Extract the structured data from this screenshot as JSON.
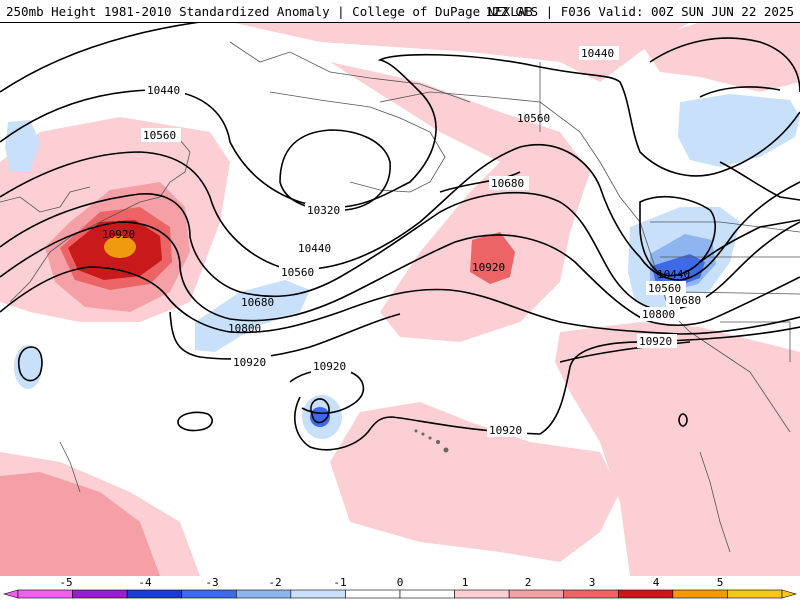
{
  "header": {
    "title_left": "250mb Height 1981-2010 Standardized Anomaly | College of DuPage NEXLAB",
    "title_right": "12Z GFS | F036 Valid: 00Z SUN JUN 22 2025"
  },
  "contours": {
    "labels": [
      {
        "id": "c1",
        "text": "10440"
      },
      {
        "id": "c2",
        "text": "10560"
      },
      {
        "id": "c3",
        "text": "10920"
      },
      {
        "id": "c4",
        "text": "10320"
      },
      {
        "id": "c5",
        "text": "10440"
      },
      {
        "id": "c6",
        "text": "10560"
      },
      {
        "id": "c7",
        "text": "10680"
      },
      {
        "id": "c8",
        "text": "10800"
      },
      {
        "id": "c9",
        "text": "10920"
      },
      {
        "id": "c10",
        "text": "10920"
      },
      {
        "id": "c11",
        "text": "10920"
      },
      {
        "id": "c12",
        "text": "10560"
      },
      {
        "id": "c13",
        "text": "10680"
      },
      {
        "id": "c14",
        "text": "10440"
      },
      {
        "id": "c15",
        "text": "10440"
      },
      {
        "id": "c16",
        "text": "10560"
      },
      {
        "id": "c17",
        "text": "10680"
      },
      {
        "id": "c18",
        "text": "10800"
      },
      {
        "id": "c19",
        "text": "10920"
      },
      {
        "id": "c20",
        "text": "10920"
      }
    ]
  },
  "colorbar": {
    "ticks": [
      "-5",
      "-4",
      "-3",
      "-2",
      "-1",
      "0",
      "1",
      "2",
      "3",
      "4",
      "5"
    ],
    "colors": [
      "#f060f0",
      "#9a1ecc",
      "#1a3ed0",
      "#3c6ae8",
      "#8fb5f0",
      "#c8e0fa",
      "#ffffff",
      "#ffffff",
      "#fbcfd3",
      "#f4a0a6",
      "#ec6466",
      "#c81a1a",
      "#f09a10",
      "#f8c61c"
    ]
  }
}
